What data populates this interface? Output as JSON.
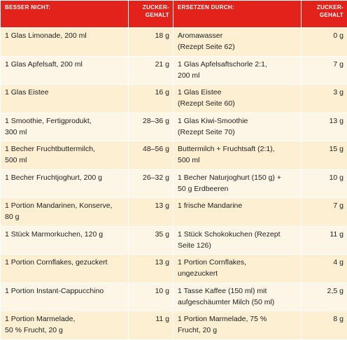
{
  "table": {
    "header": [
      "BESSER NICHT:",
      "ZUCKER-\nGEHALT",
      "ERSETZEN DURCH:",
      "ZUCKER-\nGEHALT"
    ],
    "rows": [
      [
        "1 Glas Limonade, 200 ml",
        "18 g",
        "Aromawasser\n(Rezept Seite 62)",
        "0 g"
      ],
      [
        "1 Glas Apfelsaft, 200 ml",
        "21 g",
        "1 Glas Apfelsaftschorle 2:1,\n200 ml",
        "7 g"
      ],
      [
        "1 Glas Eistee",
        "16 g",
        "1 Glas Eistee\n(Rezept Seite 60)",
        "3 g"
      ],
      [
        "1 Smoothie, Fertigprodukt,\n300 ml",
        "28–36 g",
        "1 Glas Kiwi-Smoothie\n(Rezept Seite 70)",
        "13 g"
      ],
      [
        "1 Becher Fruchtbuttermilch,\n500 ml",
        "48–56 g",
        "Buttermilch + Fruchtsaft (2:1),\n500 ml",
        "15 g"
      ],
      [
        "1 Becher Fruchtjoghurt, 200 g",
        "26–32 g",
        "1 Becher Naturjoghurt (150 g) +\n50 g Erdbeeren",
        "10 g"
      ],
      [
        "1 Portion Mandarinen, Konserve,\n80 g",
        "13 g",
        "1 frische Mandarine",
        "7 g"
      ],
      [
        "1 Stück Marmorkuchen, 120 g",
        "35 g",
        "1 Stück Schokokuchen (Rezept\nSeite 126)",
        "11 g"
      ],
      [
        "1 Portion Cornflakes, gezuckert",
        "13 g",
        "1 Portion Cornflakes,\nungezuckert",
        "4 g"
      ],
      [
        "1 Portion Instant-Cappucchino",
        "10 g",
        "1 Tasse Kaffee (150 ml) mit\naufgeschäumter Milch (50 ml)",
        "2,5 g"
      ],
      [
        "1 Portion Marmelade,\n50 % Frucht, 20 g",
        "11 g",
        "1 Portion Marmelade, 75 %\nFrucht, 20 g",
        "8 g"
      ]
    ]
  }
}
